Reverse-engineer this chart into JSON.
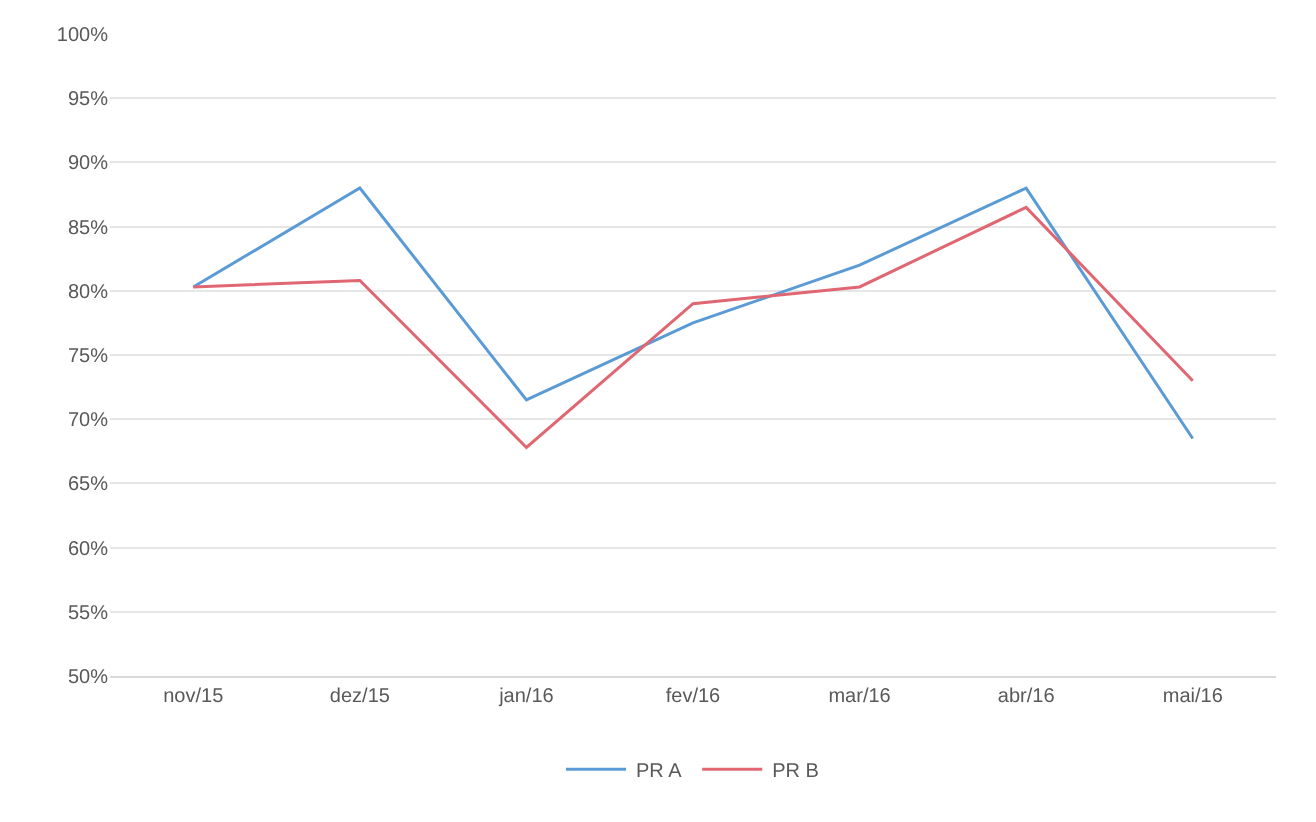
{
  "chart_data": {
    "type": "line",
    "categories": [
      "nov/15",
      "dez/15",
      "jan/16",
      "fev/16",
      "mar/16",
      "abr/16",
      "mai/16"
    ],
    "series": [
      {
        "name": "PR A",
        "color": "#5b9bd5",
        "values": [
          80.3,
          88,
          71.5,
          77.5,
          82,
          88,
          68.5
        ]
      },
      {
        "name": "PR B",
        "color": "#e06672",
        "values": [
          80.3,
          80.8,
          67.8,
          79,
          80.3,
          86.5,
          73
        ]
      }
    ],
    "ylim": [
      50,
      100
    ],
    "yticks": [
      {
        "value": 50,
        "label": "50%"
      },
      {
        "value": 55,
        "label": "55%"
      },
      {
        "value": 60,
        "label": "60%"
      },
      {
        "value": 65,
        "label": "65%"
      },
      {
        "value": 70,
        "label": "70%"
      },
      {
        "value": 75,
        "label": "75%"
      },
      {
        "value": 80,
        "label": "80%"
      },
      {
        "value": 85,
        "label": "85%"
      },
      {
        "value": 90,
        "label": "90%"
      },
      {
        "value": 95,
        "label": "95%"
      },
      {
        "value": 100,
        "label": "100%"
      }
    ],
    "grid": "y",
    "legend": "bottom",
    "marker": "none",
    "line_style": "solid"
  }
}
